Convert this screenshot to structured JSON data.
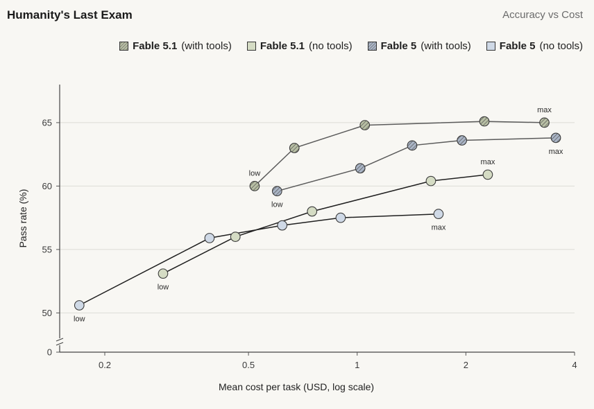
{
  "header": {
    "title": "Humanity's Last Exam",
    "subtitle": "Accuracy vs Cost"
  },
  "legend": [
    {
      "name": "Fable 5.1",
      "qualifier": "(with tools)",
      "icon": "hatched-swatch",
      "color": "#b8bfa4"
    },
    {
      "name": "Fable 5.1",
      "qualifier": "(no tools)",
      "icon": "solid-swatch",
      "color": "#d5dcc4"
    },
    {
      "name": "Fable 5",
      "qualifier": "(with tools)",
      "icon": "hatched-swatch",
      "color": "#aab5c6"
    },
    {
      "name": "Fable 5",
      "qualifier": "(no tools)",
      "icon": "solid-swatch",
      "color": "#cfd9e6"
    }
  ],
  "chart_data": {
    "type": "line",
    "title": "Humanity's Last Exam",
    "subtitle": "Accuracy vs Cost",
    "xlabel": "Mean cost per task (USD, log scale)",
    "ylabel": "Pass rate (%)",
    "x_scale": "log",
    "xlim": [
      0.15,
      4
    ],
    "ylim": [
      48,
      68
    ],
    "x_ticks": [
      {
        "value": 0.2,
        "label": "0.2"
      },
      {
        "value": 0.5,
        "label": "0.5"
      },
      {
        "value": 1,
        "label": "1"
      },
      {
        "value": 2,
        "label": "2"
      },
      {
        "value": 4,
        "label": "4"
      }
    ],
    "y_ticks": [
      {
        "value": 50,
        "label": "50"
      },
      {
        "value": 55,
        "label": "55"
      },
      {
        "value": 60,
        "label": "60"
      },
      {
        "value": 65,
        "label": "65"
      }
    ],
    "y_zero_label": "0",
    "axis_break": true,
    "grid": "horizontal",
    "series": [
      {
        "name": "Fable 5.1 (with tools)",
        "style": "hatched",
        "fill": "#b8bfa4",
        "line": "#5a5a5a",
        "points": [
          {
            "x": 0.52,
            "y": 60.0,
            "label": "low",
            "label_pos": "above"
          },
          {
            "x": 0.67,
            "y": 63.0
          },
          {
            "x": 1.05,
            "y": 64.8
          },
          {
            "x": 2.25,
            "y": 65.1
          },
          {
            "x": 3.3,
            "y": 65.0,
            "label": "max",
            "label_pos": "above"
          }
        ]
      },
      {
        "name": "Fable 5 (with tools)",
        "style": "hatched",
        "fill": "#aab5c6",
        "line": "#5a5a5a",
        "points": [
          {
            "x": 0.6,
            "y": 59.6,
            "label": "low",
            "label_pos": "below"
          },
          {
            "x": 1.02,
            "y": 61.4
          },
          {
            "x": 1.42,
            "y": 63.2
          },
          {
            "x": 1.95,
            "y": 63.6
          },
          {
            "x": 3.55,
            "y": 63.8,
            "label": "max",
            "label_pos": "below"
          }
        ]
      },
      {
        "name": "Fable 5.1 (no tools)",
        "style": "solid",
        "fill": "#d5dcc4",
        "line": "#1f1f1f",
        "points": [
          {
            "x": 0.29,
            "y": 53.1,
            "label": "low",
            "label_pos": "below"
          },
          {
            "x": 0.46,
            "y": 56.0
          },
          {
            "x": 0.75,
            "y": 58.0
          },
          {
            "x": 1.6,
            "y": 60.4
          },
          {
            "x": 2.3,
            "y": 60.9,
            "label": "max",
            "label_pos": "above"
          }
        ]
      },
      {
        "name": "Fable 5 (no tools)",
        "style": "solid",
        "fill": "#cfd9e6",
        "line": "#1f1f1f",
        "points": [
          {
            "x": 0.17,
            "y": 50.6,
            "label": "low",
            "label_pos": "below"
          },
          {
            "x": 0.39,
            "y": 55.9
          },
          {
            "x": 0.62,
            "y": 56.9
          },
          {
            "x": 0.9,
            "y": 57.5
          },
          {
            "x": 1.68,
            "y": 57.8,
            "label": "max",
            "label_pos": "below"
          }
        ]
      }
    ]
  }
}
